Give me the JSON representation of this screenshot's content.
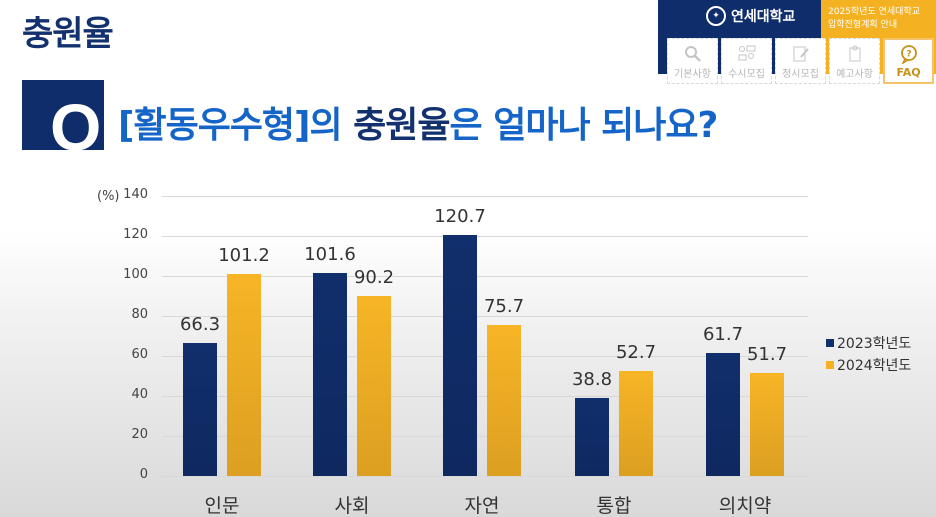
{
  "page": {
    "title": "충원율"
  },
  "banner": {
    "university": "연세대학교",
    "guide_line1": "2025학년도 연세대학교",
    "guide_line2": "입학전형계획 안내",
    "nav": [
      {
        "label": "기본사항",
        "icon": "search-icon"
      },
      {
        "label": "수시모집",
        "icon": "people-chat-icon"
      },
      {
        "label": "정시모집",
        "icon": "document-edit-icon"
      },
      {
        "label": "예고사항",
        "icon": "clipboard-icon"
      },
      {
        "label": "FAQ",
        "icon": "question-bubble-icon",
        "active": true
      }
    ],
    "colors": {
      "navy": "#0f2d6b",
      "yellow": "#f4b223"
    }
  },
  "question": {
    "q_letter": "Q",
    "part1": "[활동우수형]의 ",
    "part2": "충원율",
    "part3": "은 얼마나 되나요?"
  },
  "chart_data": {
    "type": "bar",
    "title": "[활동우수형]의 충원율은 얼마나 되나요?",
    "xlabel": "",
    "ylabel": "(%)",
    "ylim": [
      0,
      140
    ],
    "yticks": [
      0,
      20,
      40,
      60,
      80,
      100,
      120,
      140
    ],
    "grid": true,
    "legend_position": "right",
    "categories": [
      "인문",
      "사회",
      "자연",
      "통합",
      "의치약"
    ],
    "series": [
      {
        "name": "2023학년도",
        "color": "#112f6c",
        "values": [
          66.3,
          101.6,
          120.7,
          38.8,
          61.7
        ]
      },
      {
        "name": "2024학년도",
        "color": "#f4b223",
        "values": [
          101.2,
          90.2,
          75.7,
          52.7,
          51.7
        ]
      }
    ]
  }
}
